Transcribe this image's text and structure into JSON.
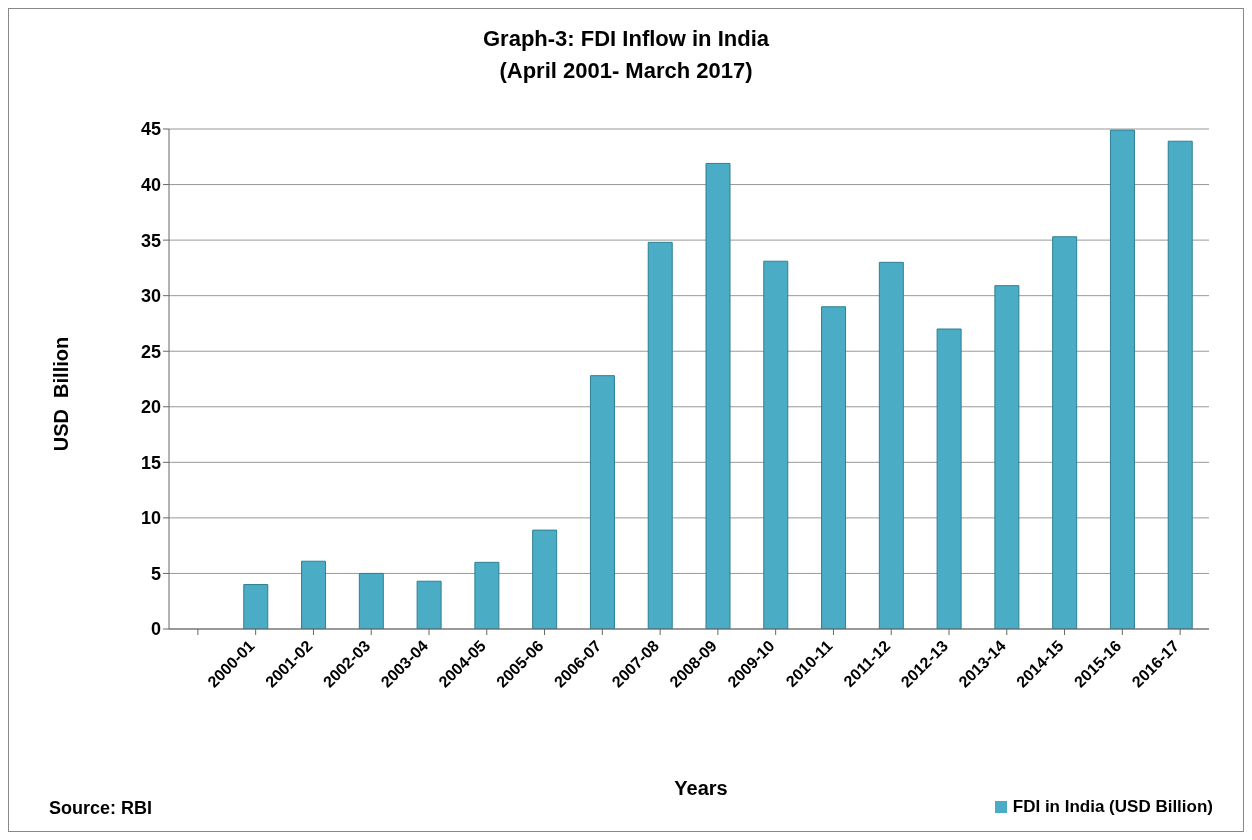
{
  "chart_data": {
    "type": "bar",
    "title": "Graph-3: FDI Inflow in India",
    "subtitle": "(April 2001- March 2017)",
    "xlabel": "Years",
    "ylabel": "USD  Billion",
    "categories": [
      null,
      "2000-01",
      "2001-02",
      "2002-03",
      "2003-04",
      "2004-05",
      "2005-06",
      "2006-07",
      "2007-08",
      "2008-09",
      "2009-10",
      "2010-11",
      "2011-12",
      "2012-13",
      "2013-14",
      "2014-15",
      "2015-16",
      "2016-17"
    ],
    "series": [
      {
        "name": "FDI in India (USD Billion)",
        "color": "#4bacc6",
        "values": [
          null,
          4.0,
          6.1,
          5.0,
          4.3,
          6.0,
          8.9,
          22.8,
          34.8,
          41.9,
          33.1,
          29.0,
          33.0,
          27.0,
          30.9,
          35.3,
          44.9,
          43.9
        ]
      }
    ],
    "ylim": [
      0,
      45
    ],
    "yticks": [
      0,
      5,
      10,
      15,
      20,
      25,
      30,
      35,
      40,
      45
    ],
    "grid": "y",
    "legend": "bottom right",
    "annotations": [
      "Source: RBI"
    ]
  }
}
